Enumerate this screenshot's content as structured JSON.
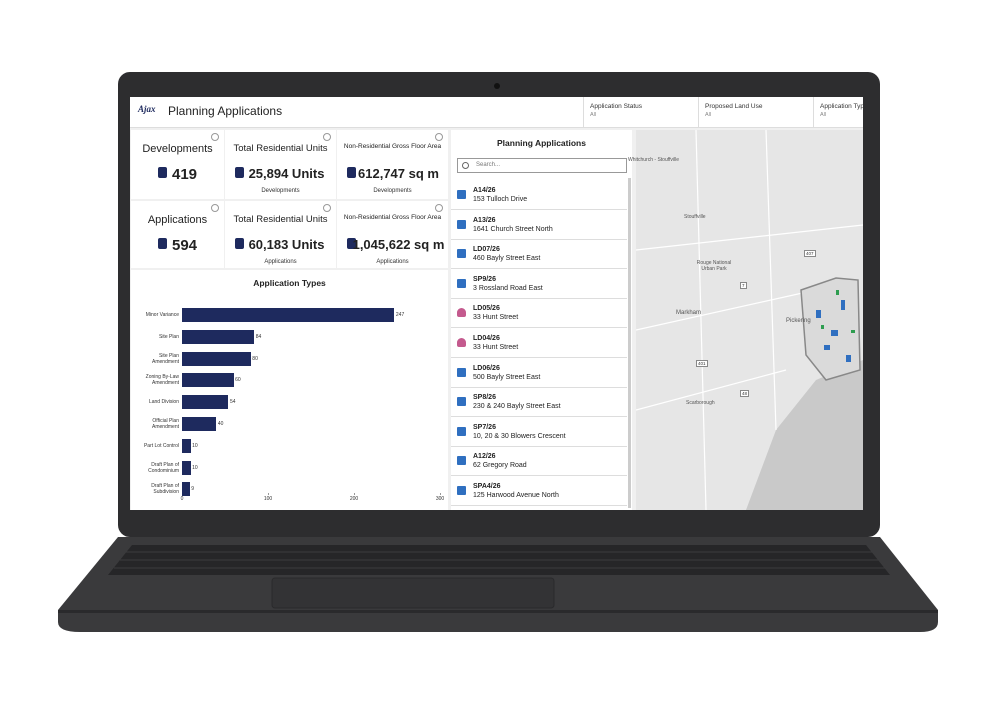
{
  "header": {
    "logo": "Ajax",
    "title": "Planning Applications"
  },
  "filters": [
    {
      "label": "Application Status",
      "value": "All"
    },
    {
      "label": "Proposed Land Use",
      "value": "All"
    },
    {
      "label": "Application Type",
      "value": "All"
    }
  ],
  "kpis": [
    {
      "title": "Developments",
      "value": "419"
    },
    {
      "title": "Total Residential Units",
      "value": "25,894 Units",
      "caption": "Developments"
    },
    {
      "title": "Non-Residential Gross Floor Area",
      "value": "612,747 sq m",
      "caption": "Developments"
    },
    {
      "title": "Applications",
      "value": "594"
    },
    {
      "title": "Total Residential Units",
      "value": "60,183 Units",
      "caption": "Applications"
    },
    {
      "title": "Non-Residential Gross Floor Area",
      "value": "1,045,622 sq m",
      "caption": "Applications"
    }
  ],
  "chart_data": {
    "type": "bar",
    "orientation": "horizontal",
    "title": "Application Types",
    "categories": [
      "Minor Variance",
      "Site Plan",
      "Site Plan Amendment",
      "Zoning By-Law Amendment",
      "Land Division",
      "Official Plan Amendment",
      "Part Lot Control",
      "Draft Plan of Condominium",
      "Draft Plan of Subdivision"
    ],
    "values": [
      247,
      84,
      80,
      60,
      54,
      40,
      10,
      10,
      9
    ],
    "color": "#1e2a5e",
    "xlim": [
      0,
      300
    ],
    "xticks": [
      0,
      100,
      200,
      300
    ]
  },
  "list": {
    "title": "Planning Applications",
    "search_placeholder": "Search...",
    "items": [
      {
        "id": "A14/26",
        "address": "153 Tulloch Drive",
        "color": "#2f6fc0"
      },
      {
        "id": "A13/26",
        "address": "1641 Church Street North",
        "color": "#2f6fc0"
      },
      {
        "id": "LD07/26",
        "address": "460 Bayly Street East",
        "color": "#2f6fc0"
      },
      {
        "id": "SP9/26",
        "address": "3 Rossland Road East",
        "color": "#2f6fc0"
      },
      {
        "id": "LD05/26",
        "address": "33 Hunt Street",
        "color": "#c45a8e"
      },
      {
        "id": "LD04/26",
        "address": "33 Hunt Street",
        "color": "#c45a8e"
      },
      {
        "id": "LD06/26",
        "address": "500 Bayly Street East",
        "color": "#2f6fc0"
      },
      {
        "id": "SP8/26",
        "address": "230 & 240 Bayly Street East",
        "color": "#2f6fc0"
      },
      {
        "id": "SP7/26",
        "address": "10, 20 & 30 Blowers Crescent",
        "color": "#2f6fc0"
      },
      {
        "id": "A12/26",
        "address": "62 Gregory Road",
        "color": "#2f6fc0"
      },
      {
        "id": "SPA4/26",
        "address": "125 Harwood Avenue North",
        "color": "#2f6fc0"
      }
    ]
  },
  "map": {
    "labels": [
      "Whitchurch - Stouffville",
      "Stouffville",
      "Rouge National Urban Park",
      "Markham",
      "Pickering",
      "Scarborough"
    ],
    "road_labels": [
      "407",
      "7",
      "48",
      "401"
    ]
  }
}
